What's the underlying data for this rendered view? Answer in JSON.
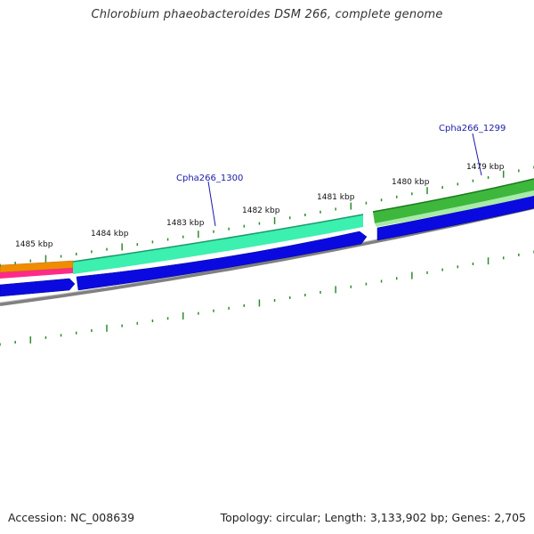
{
  "title": "Chlorobium phaeobacteroides DSM 266, complete genome",
  "ruler_labels": [
    "1485 kbp",
    "1484 kbp",
    "1483 kbp",
    "1482 kbp",
    "1481 kbp",
    "1480 kbp",
    "1479 kbp"
  ],
  "gene_labels": [
    "Cpha266_1300",
    "Cpha266_1299"
  ],
  "footer": {
    "accession": "Accession: NC_008639",
    "summary": "Topology: circular; Length: 3,133,902 bp; Genes: 2,705"
  },
  "colors": {
    "tick": "#2e8b2e",
    "label_blue": "#1a1aaa",
    "cds_blue": "#0a0ae0",
    "mint": "#3cf0b0",
    "green": "#3db83d",
    "orange": "#f08c00",
    "pink": "#ff2a8a",
    "backbone": "#808080"
  }
}
